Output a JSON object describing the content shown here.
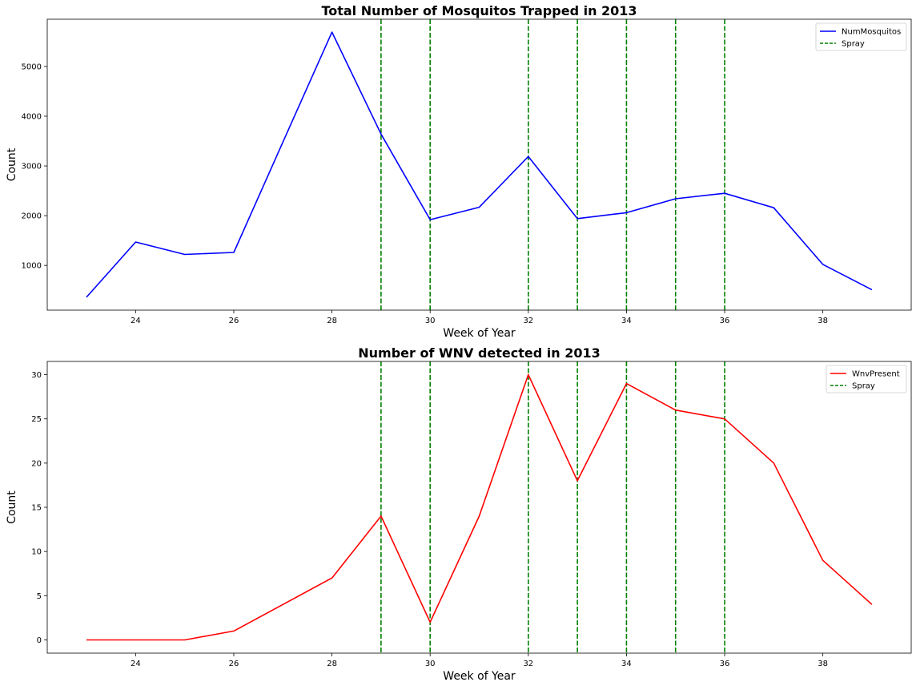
{
  "chart_data": [
    {
      "type": "line",
      "title": "Total Number of Mosquitos Trapped in 2013",
      "xlabel": "Week of Year",
      "ylabel": "Count",
      "xlim": [
        22.2,
        39.8
      ],
      "ylim": [
        100,
        5950
      ],
      "xticks": [
        24,
        26,
        28,
        30,
        32,
        34,
        36,
        38
      ],
      "yticks": [
        1000,
        2000,
        3000,
        4000,
        5000
      ],
      "x": [
        23,
        24,
        25,
        26,
        27,
        28,
        29,
        30,
        31,
        32,
        33,
        34,
        35,
        36,
        37,
        38,
        39
      ],
      "series": [
        {
          "name": "NumMosquitos",
          "color": "#0000ff",
          "style": "solid",
          "values": [
            360,
            1470,
            1220,
            1260,
            3480,
            5690,
            3640,
            1920,
            2170,
            3190,
            1940,
            2060,
            2340,
            2450,
            2160,
            1020,
            510
          ]
        }
      ],
      "spray": {
        "name": "Spray",
        "color": "#008000",
        "style": "dashed",
        "weeks": [
          29,
          30,
          32,
          33,
          34,
          35,
          36
        ]
      },
      "legend": "top-right",
      "grid": false
    },
    {
      "type": "line",
      "title": "Number of WNV detected in 2013",
      "xlabel": "Week of Year",
      "ylabel": "Count",
      "xlim": [
        22.2,
        39.8
      ],
      "ylim": [
        -1.5,
        31.5
      ],
      "xticks": [
        24,
        26,
        28,
        30,
        32,
        34,
        36,
        38
      ],
      "yticks": [
        0,
        5,
        10,
        15,
        20,
        25,
        30
      ],
      "x": [
        23,
        24,
        25,
        26,
        27,
        28,
        29,
        30,
        31,
        32,
        33,
        34,
        35,
        36,
        37,
        38,
        39
      ],
      "series": [
        {
          "name": "WnvPresent",
          "color": "#ff0000",
          "style": "solid",
          "values": [
            0,
            0,
            0,
            1,
            4,
            7,
            14,
            2,
            14,
            30,
            18,
            29,
            26,
            25,
            20,
            9,
            4
          ]
        }
      ],
      "spray": {
        "name": "Spray",
        "color": "#008000",
        "style": "dashed",
        "weeks": [
          29,
          30,
          32,
          33,
          34,
          35,
          36
        ]
      },
      "legend": "top-right",
      "grid": false
    }
  ]
}
